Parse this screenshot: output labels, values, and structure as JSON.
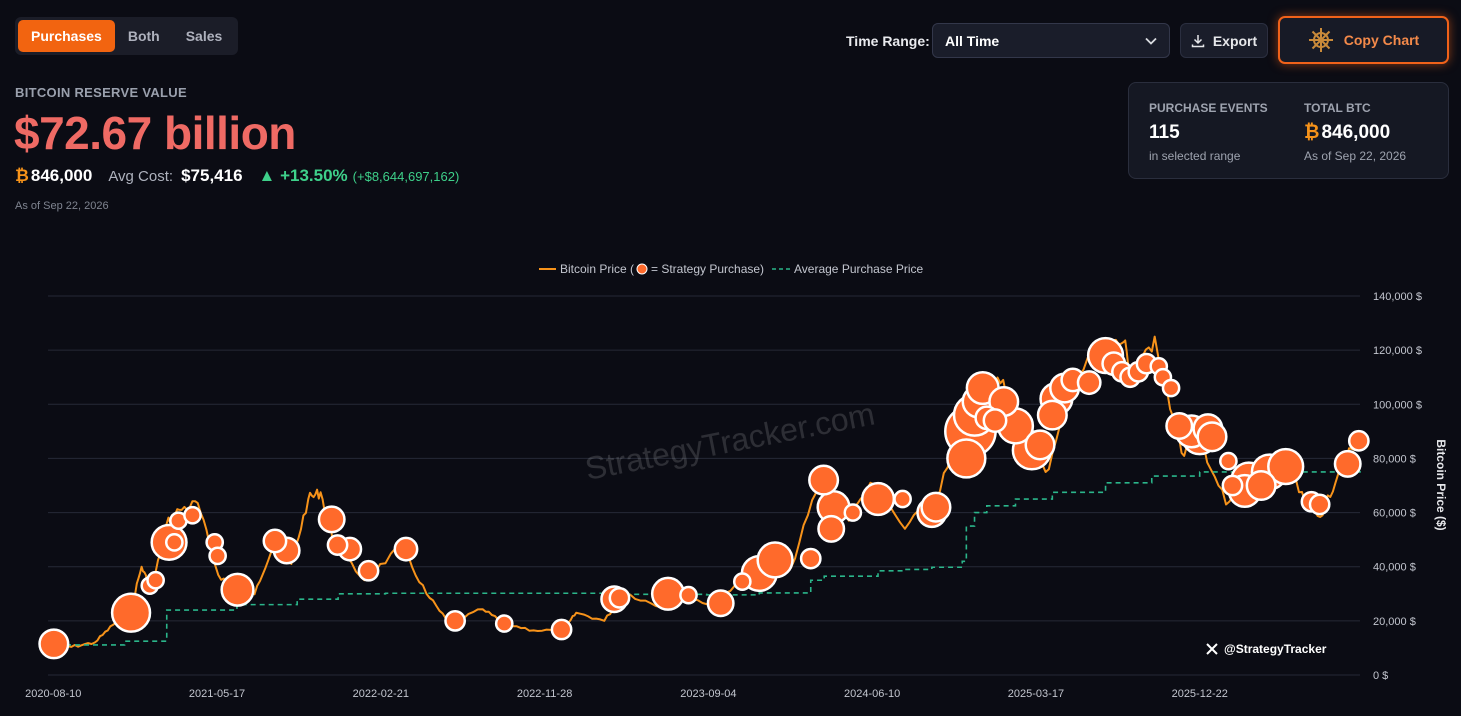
{
  "tabs": [
    {
      "label": "Purchases",
      "active": true
    },
    {
      "label": "Both",
      "active": false
    },
    {
      "label": "Sales",
      "active": false
    }
  ],
  "toolbar": {
    "time_range_label": "Time Range:",
    "time_range_value": "All Time",
    "export_label": "Export",
    "copy_chart_label": "Copy Chart"
  },
  "summary": {
    "reserve_label": "BITCOIN RESERVE VALUE",
    "reserve_value": "$72.67 billion",
    "btc_symbol": "₿",
    "btc_amount": "846,000",
    "avg_cost_label": "Avg Cost:",
    "avg_cost": "$75,416",
    "gain_pct": "▲ +13.50%",
    "gain_abs": "(+$8,644,697,162)",
    "as_of": "As of Sep 22, 2026"
  },
  "card": {
    "events_label": "PURCHASE EVENTS",
    "events_value": "115",
    "events_sub": "in selected range",
    "total_label": "TOTAL BTC",
    "total_value": "846,000",
    "total_sub": "As of Sep 22, 2026"
  },
  "colors": {
    "accent": "#f26410",
    "price_line": "#f7931a",
    "purchase_marker": "#ff6a2b",
    "avg_line": "#2bb58a",
    "reserve_value": "#ef6a64",
    "gain": "#3ed08a"
  },
  "icons": {
    "dropdown": "chevron-down-icon",
    "export": "download-icon",
    "copy": "ship-wheel-icon",
    "x_logo": "x-logo-icon"
  },
  "chart_data": {
    "type": "line",
    "legend": [
      "Bitcoin Price (",
      "= Strategy Purchase)",
      "Average Purchase Price"
    ],
    "legend_placement": "top-center",
    "watermark": "StrategyTracker.com",
    "handle": "@StrategyTracker",
    "ylabel": "Bitcoin Price ($)",
    "ylim": [
      0,
      140000
    ],
    "y_ticks": [
      0,
      20000,
      40000,
      60000,
      80000,
      100000,
      120000,
      140000
    ],
    "y_tick_labels": [
      "0 $",
      "20,000 $",
      "40,000 $",
      "60,000 $",
      "80,000 $",
      "100,000 $",
      "120,000 $",
      "140,000 $"
    ],
    "x_tick_labels": [
      "2020-08-10",
      "2021-05-17",
      "2022-02-21",
      "2022-11-28",
      "2023-09-04",
      "2024-06-10",
      "2025-03-17",
      "2025-12-22"
    ],
    "xlim": [
      "2020-08-01",
      "2026-09-22"
    ],
    "grid": true,
    "series": [
      {
        "name": "Bitcoin Price",
        "points": [
          [
            "2020-08-01",
            11500
          ],
          [
            "2020-09-10",
            10400
          ],
          [
            "2020-10-20",
            12000
          ],
          [
            "2020-11-20",
            18500
          ],
          [
            "2020-12-20",
            24000
          ],
          [
            "2021-01-08",
            40000
          ],
          [
            "2021-01-25",
            31000
          ],
          [
            "2021-02-20",
            56000
          ],
          [
            "2021-03-13",
            61000
          ],
          [
            "2021-04-14",
            63500
          ],
          [
            "2021-05-19",
            37000
          ],
          [
            "2021-06-22",
            31000
          ],
          [
            "2021-07-20",
            29800
          ],
          [
            "2021-08-22",
            49000
          ],
          [
            "2021-09-21",
            41000
          ],
          [
            "2021-10-20",
            65000
          ],
          [
            "2021-11-10",
            67500
          ],
          [
            "2021-12-04",
            48000
          ],
          [
            "2022-01-24",
            35000
          ],
          [
            "2022-03-28",
            47500
          ],
          [
            "2022-05-10",
            30000
          ],
          [
            "2022-06-18",
            19000
          ],
          [
            "2022-08-14",
            24300
          ],
          [
            "2022-09-20",
            19000
          ],
          [
            "2022-11-09",
            16500
          ],
          [
            "2022-12-31",
            16500
          ],
          [
            "2023-01-21",
            23000
          ],
          [
            "2023-03-10",
            20000
          ],
          [
            "2023-04-14",
            30500
          ],
          [
            "2023-06-15",
            25000
          ],
          [
            "2023-07-13",
            31500
          ],
          [
            "2023-09-11",
            25000
          ],
          [
            "2023-10-24",
            34500
          ],
          [
            "2023-12-08",
            44000
          ],
          [
            "2024-01-23",
            39500
          ],
          [
            "2024-03-14",
            73000
          ],
          [
            "2024-05-01",
            57000
          ],
          [
            "2024-06-07",
            71000
          ],
          [
            "2024-08-05",
            54000
          ],
          [
            "2024-09-27",
            66000
          ],
          [
            "2024-11-13",
            90000
          ],
          [
            "2024-12-17",
            106000
          ],
          [
            "2025-01-20",
            109000
          ],
          [
            "2025-02-28",
            84000
          ],
          [
            "2025-04-08",
            76000
          ],
          [
            "2025-05-22",
            111000
          ],
          [
            "2025-07-14",
            122000
          ],
          [
            "2025-08-14",
            123000
          ],
          [
            "2025-09-01",
            108000
          ],
          [
            "2025-10-06",
            125000
          ],
          [
            "2025-11-21",
            82000
          ],
          [
            "2025-12-22",
            88000
          ],
          [
            "2026-02-05",
            63000
          ],
          [
            "2026-03-20",
            70000
          ],
          [
            "2026-05-15",
            78000
          ],
          [
            "2026-06-20",
            64000
          ],
          [
            "2026-07-20",
            59000
          ],
          [
            "2026-08-20",
            78000
          ],
          [
            "2026-09-22",
            86000
          ]
        ]
      },
      {
        "name": "Average Purchase Price",
        "style": "dashed",
        "points": [
          [
            "2020-08-01",
            11100
          ],
          [
            "2020-12-10",
            12500
          ],
          [
            "2021-02-20",
            24000
          ],
          [
            "2021-06-20",
            26000
          ],
          [
            "2021-10-01",
            28000
          ],
          [
            "2021-12-10",
            30000
          ],
          [
            "2022-03-01",
            30200
          ],
          [
            "2023-03-27",
            29800
          ],
          [
            "2023-09-01",
            29600
          ],
          [
            "2023-11-30",
            30300
          ],
          [
            "2024-02-26",
            35000
          ],
          [
            "2024-03-20",
            36500
          ],
          [
            "2024-06-20",
            38500
          ],
          [
            "2024-08-01",
            39000
          ],
          [
            "2024-09-20",
            39800
          ],
          [
            "2024-11-11",
            42000
          ],
          [
            "2024-11-18",
            55000
          ],
          [
            "2024-12-02",
            60000
          ],
          [
            "2024-12-23",
            62500
          ],
          [
            "2025-02-10",
            65000
          ],
          [
            "2025-04-14",
            67500
          ],
          [
            "2025-07-14",
            71000
          ],
          [
            "2025-10-01",
            73500
          ],
          [
            "2025-12-22",
            75000
          ],
          [
            "2026-09-22",
            75416
          ]
        ]
      }
    ],
    "purchases": [
      [
        "2020-08-11",
        11500,
        6
      ],
      [
        "2020-12-21",
        23000,
        9
      ],
      [
        "2021-01-22",
        33000,
        2
      ],
      [
        "2021-02-01",
        35000,
        2
      ],
      [
        "2021-02-24",
        49000,
        8
      ],
      [
        "2021-03-05",
        49000,
        2
      ],
      [
        "2021-03-12",
        57000,
        2
      ],
      [
        "2021-04-05",
        59000,
        2
      ],
      [
        "2021-05-13",
        49000,
        2
      ],
      [
        "2021-05-18",
        44000,
        2
      ],
      [
        "2021-06-21",
        31500,
        7
      ],
      [
        "2021-08-24",
        49500,
        4
      ],
      [
        "2021-09-13",
        46000,
        5
      ],
      [
        "2021-11-29",
        57500,
        5
      ],
      [
        "2021-12-09",
        48000,
        3
      ],
      [
        "2021-12-30",
        46500,
        4
      ],
      [
        "2022-01-31",
        38500,
        3
      ],
      [
        "2022-04-05",
        46500,
        4
      ],
      [
        "2022-06-28",
        20000,
        3
      ],
      [
        "2022-09-20",
        19000,
        2
      ],
      [
        "2022-12-27",
        16800,
        3
      ],
      [
        "2023-03-27",
        28000,
        5
      ],
      [
        "2023-04-05",
        28500,
        3
      ],
      [
        "2023-06-27",
        30000,
        7
      ],
      [
        "2023-08-01",
        29500,
        2
      ],
      [
        "2023-09-25",
        26500,
        5
      ],
      [
        "2023-11-01",
        34500,
        2
      ],
      [
        "2023-11-30",
        37500,
        8
      ],
      [
        "2023-12-27",
        42500,
        8
      ],
      [
        "2024-02-26",
        43000,
        3
      ],
      [
        "2024-03-19",
        72000,
        6
      ],
      [
        "2024-04-01",
        54000,
        5
      ],
      [
        "2024-04-05",
        62000,
        7
      ],
      [
        "2024-05-08",
        60000,
        2
      ],
      [
        "2024-06-20",
        65000,
        7
      ],
      [
        "2024-08-01",
        65000,
        2
      ],
      [
        "2024-09-20",
        60000,
        6
      ],
      [
        "2024-09-27",
        62000,
        6
      ],
      [
        "2024-11-18",
        80000,
        9
      ],
      [
        "2024-11-25",
        90000,
        13
      ],
      [
        "2024-12-02",
        96000,
        10
      ],
      [
        "2024-12-09",
        101000,
        7
      ],
      [
        "2024-12-16",
        106000,
        7
      ],
      [
        "2024-12-23",
        95000,
        4
      ],
      [
        "2025-01-06",
        94000,
        4
      ],
      [
        "2025-01-21",
        101000,
        6
      ],
      [
        "2025-02-10",
        92000,
        8
      ],
      [
        "2025-03-10",
        83000,
        9
      ],
      [
        "2025-03-24",
        85000,
        6
      ],
      [
        "2025-04-14",
        96000,
        6
      ],
      [
        "2025-04-21",
        102000,
        7
      ],
      [
        "2025-05-05",
        106000,
        6
      ],
      [
        "2025-05-19",
        109000,
        4
      ],
      [
        "2025-06-16",
        108000,
        4
      ],
      [
        "2025-07-14",
        118000,
        8
      ],
      [
        "2025-07-28",
        115000,
        4
      ],
      [
        "2025-08-11",
        112000,
        3
      ],
      [
        "2025-08-25",
        110000,
        3
      ],
      [
        "2025-09-08",
        112000,
        3
      ],
      [
        "2025-09-22",
        115000,
        3
      ],
      [
        "2025-10-13",
        114000,
        2
      ],
      [
        "2025-10-20",
        110000,
        2
      ],
      [
        "2025-11-03",
        106000,
        2
      ],
      [
        "2025-11-17",
        92000,
        5
      ],
      [
        "2025-12-08",
        90000,
        7
      ],
      [
        "2025-12-22",
        88000,
        8
      ],
      [
        "2026-01-05",
        91000,
        6
      ],
      [
        "2026-01-12",
        88000,
        6
      ],
      [
        "2026-02-09",
        79000,
        2
      ],
      [
        "2026-02-16",
        70000,
        3
      ],
      [
        "2026-03-09",
        68000,
        7
      ],
      [
        "2026-03-16",
        72000,
        8
      ],
      [
        "2026-04-06",
        70000,
        6
      ],
      [
        "2026-04-20",
        75000,
        8
      ],
      [
        "2026-05-18",
        77000,
        8
      ],
      [
        "2026-07-01",
        64000,
        3
      ],
      [
        "2026-07-15",
        63000,
        3
      ],
      [
        "2026-09-01",
        78000,
        5
      ],
      [
        "2026-09-20",
        86500,
        3
      ]
    ]
  }
}
